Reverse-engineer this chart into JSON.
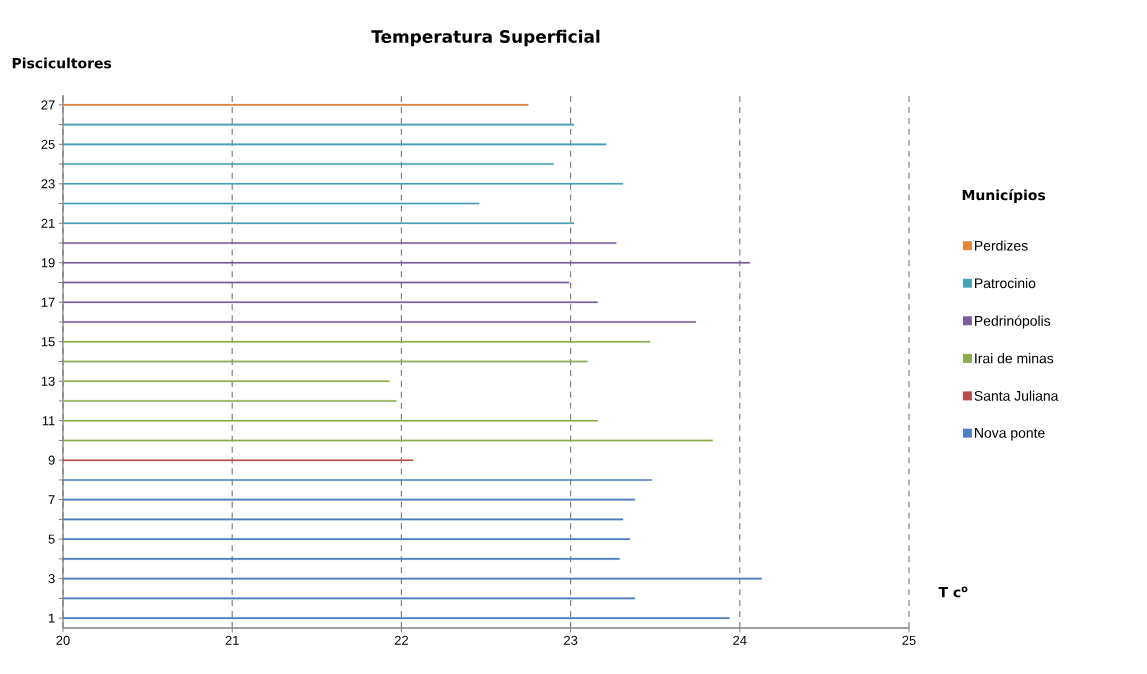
{
  "chart_data": {
    "type": "bar",
    "orientation": "horizontal",
    "title": "Temperatura Superficial",
    "xlabel": "T c$^{o}$",
    "ylabel": "Piscicultores",
    "legend_title": "Municípios",
    "categories": [
      "27",
      null,
      "25",
      null,
      "23",
      null,
      "21",
      null,
      "19",
      null,
      "17",
      null,
      "15",
      null,
      "13",
      null,
      "11",
      null,
      "9",
      null,
      "7",
      null,
      "5",
      null,
      "3",
      null,
      "1"
    ],
    "series": [
      {
        "name": "Perdizes",
        "color": "#e0873f",
        "values": [
          22.75,
          null,
          null,
          null,
          null,
          null,
          null,
          null,
          null,
          null,
          null,
          null,
          null,
          null,
          null,
          null,
          null,
          null,
          null,
          null,
          null,
          null,
          null,
          null,
          null,
          null,
          null
        ]
      },
      {
        "name": "Patrocinio",
        "color": "#4aa0b5",
        "values": [
          null,
          23.02,
          23.21,
          22.9,
          23.31,
          22.46,
          23.02,
          null,
          null,
          null,
          null,
          null,
          null,
          null,
          null,
          null,
          null,
          null,
          null,
          null,
          null,
          null,
          null,
          null,
          null,
          null,
          null
        ]
      },
      {
        "name": "Pedrinópolis",
        "color": "#7a5c9a",
        "values": [
          null,
          null,
          null,
          null,
          null,
          null,
          null,
          23.27,
          24.06,
          22.99,
          23.16,
          23.74,
          null,
          null,
          null,
          null,
          null,
          null,
          null,
          null,
          null,
          null,
          null,
          null,
          null,
          null,
          null
        ]
      },
      {
        "name": "Irai de minas",
        "color": "#8bab4e",
        "values": [
          null,
          null,
          null,
          null,
          null,
          null,
          null,
          null,
          null,
          null,
          null,
          null,
          23.47,
          23.1,
          21.93,
          21.97,
          23.16,
          23.84,
          null,
          null,
          null,
          null,
          null,
          null,
          null,
          null,
          null
        ]
      },
      {
        "name": "Santa  Juliana",
        "color": "#b84b4b",
        "values": [
          null,
          null,
          null,
          null,
          null,
          null,
          null,
          null,
          null,
          null,
          null,
          null,
          null,
          null,
          null,
          null,
          null,
          null,
          22.07,
          null,
          null,
          null,
          null,
          null,
          null,
          null,
          null
        ]
      },
      {
        "name": "Nova ponte",
        "color": "#4f7fc0",
        "values": [
          null,
          null,
          null,
          null,
          null,
          null,
          null,
          null,
          null,
          null,
          null,
          null,
          null,
          null,
          null,
          null,
          null,
          null,
          null,
          23.48,
          23.38,
          23.31,
          23.35,
          23.29,
          24.13,
          23.38,
          23.94
        ]
      }
    ],
    "xlim": [
      20,
      25
    ],
    "xticks": [
      20,
      21,
      22,
      23,
      24,
      25
    ],
    "grid": "x",
    "legend": "right"
  }
}
